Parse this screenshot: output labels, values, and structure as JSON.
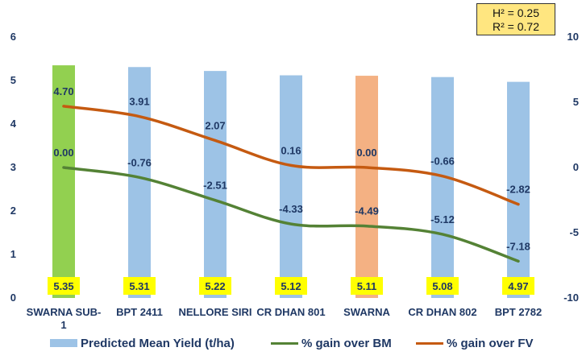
{
  "chart_data": {
    "type": "bar+line",
    "categories": [
      "SWARNA SUB-1",
      "BPT 2411",
      "NELLORE SIRI",
      "CR DHAN 801",
      "SWARNA",
      "CR DHAN 802",
      "BPT 2782"
    ],
    "bar_series": {
      "name": "Predicted Mean Yield (t/ha)",
      "values": [
        5.35,
        5.31,
        5.22,
        5.12,
        5.11,
        5.08,
        4.97
      ],
      "colors": [
        "#92d050",
        "#9dc3e6",
        "#9dc3e6",
        "#9dc3e6",
        "#f4b183",
        "#9dc3e6",
        "#9dc3e6"
      ]
    },
    "line_series": [
      {
        "name": "% gain over BM",
        "color": "#548235",
        "values": [
          0.0,
          -0.76,
          -2.51,
          -4.33,
          -4.49,
          -5.12,
          -7.18
        ],
        "labels": [
          "0.00",
          "-0.76",
          "-2.51",
          "-4.33",
          "-4.49",
          "-5.12",
          "-7.18"
        ]
      },
      {
        "name": "% gain over FV",
        "color": "#c55a11",
        "values": [
          4.7,
          3.91,
          2.07,
          0.16,
          0.0,
          -0.66,
          -2.82
        ],
        "labels": [
          "4.70",
          "3.91",
          "2.07",
          "0.16",
          "0.00",
          "-0.66",
          "-2.82"
        ]
      }
    ],
    "bar_labels": [
      "5.35",
      "5.31",
      "5.22",
      "5.12",
      "5.11",
      "5.08",
      "4.97"
    ],
    "y_left": {
      "lim": [
        0,
        6
      ],
      "ticks": [
        "0",
        "1",
        "2",
        "3",
        "4",
        "5",
        "6"
      ]
    },
    "y_right": {
      "lim": [
        -10,
        10
      ],
      "ticks": [
        "-10",
        "-5",
        "0",
        "5",
        "10"
      ]
    },
    "annotations": {
      "h2": "H² = 0.25",
      "r2": "R² = 0.72"
    },
    "label_bg": "#ffff00",
    "grid": false,
    "legend_position": "bottom"
  }
}
